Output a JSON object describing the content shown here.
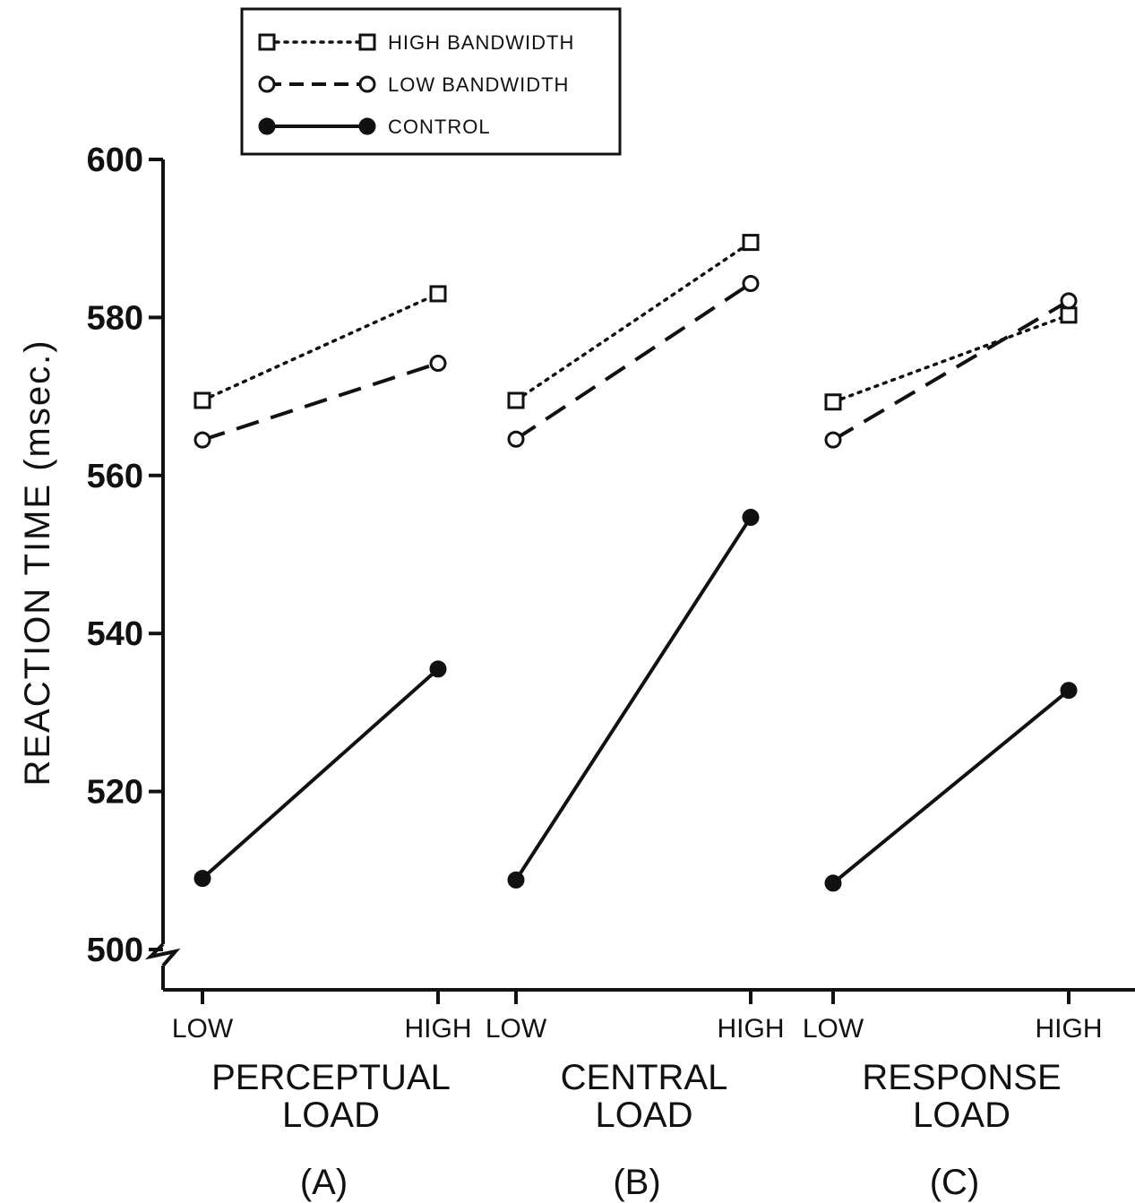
{
  "chart_data": {
    "type": "line",
    "ylabel": "REACTION TIME (msec.)",
    "ylim": [
      500,
      600
    ],
    "yticks": [
      500,
      520,
      540,
      560,
      580,
      600
    ],
    "axis_break": true,
    "grid": false,
    "legend_position": "top-left",
    "colors": {
      "ink": "#111111",
      "background": "#ffffff"
    },
    "legend": [
      {
        "series": "high",
        "label": "HIGH BANDWIDTH",
        "marker": "open-square",
        "line": "dotted"
      },
      {
        "series": "low",
        "label": "LOW BANDWIDTH",
        "marker": "open-circle",
        "line": "dashed"
      },
      {
        "series": "control",
        "label": "CONTROL",
        "marker": "filled-circle",
        "line": "solid"
      }
    ],
    "panels": [
      {
        "group_label": [
          "PERCEPTUAL",
          "LOAD"
        ],
        "panel_label": "(A)",
        "categories": [
          "LOW",
          "HIGH"
        ],
        "series": [
          {
            "id": "high",
            "values": [
              569.5,
              583
            ]
          },
          {
            "id": "low",
            "values": [
              564.5,
              574.2
            ]
          },
          {
            "id": "control",
            "values": [
              509,
              535.5
            ]
          }
        ]
      },
      {
        "group_label": [
          "CENTRAL",
          "LOAD"
        ],
        "panel_label": "(B)",
        "categories": [
          "LOW",
          "HIGH"
        ],
        "series": [
          {
            "id": "high",
            "values": [
              569.5,
              589.5
            ]
          },
          {
            "id": "low",
            "values": [
              564.6,
              584.3
            ]
          },
          {
            "id": "control",
            "values": [
              508.8,
              554.7
            ]
          }
        ]
      },
      {
        "group_label": [
          "RESPONSE",
          "LOAD"
        ],
        "panel_label": "(C)",
        "categories": [
          "LOW",
          "HIGH"
        ],
        "series": [
          {
            "id": "high",
            "values": [
              569.3,
              580.3
            ]
          },
          {
            "id": "low",
            "values": [
              564.5,
              582.1
            ]
          },
          {
            "id": "control",
            "values": [
              508.4,
              532.8
            ]
          }
        ]
      }
    ]
  }
}
